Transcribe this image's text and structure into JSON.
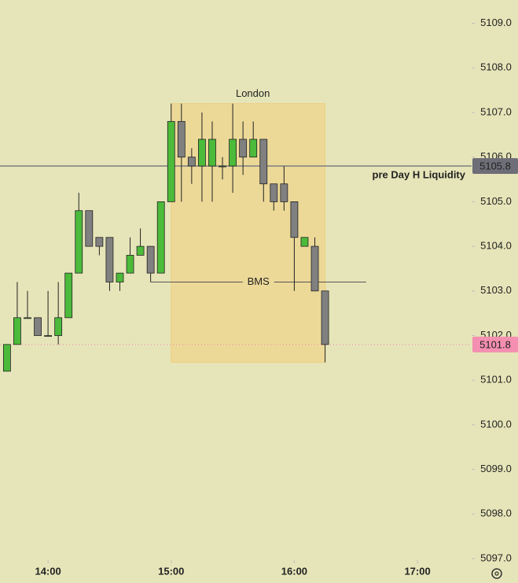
{
  "chart_data": {
    "type": "candlestick",
    "x": [
      820,
      825,
      830,
      835,
      840,
      845,
      850,
      855,
      860,
      865,
      870,
      875,
      880,
      885,
      890,
      895,
      900,
      905,
      910,
      915,
      920,
      925,
      930,
      935,
      940,
      945,
      950,
      955,
      960,
      965,
      970,
      975
    ],
    "series": [
      {
        "up_color": "#4cba3a",
        "down_color": "#808080",
        "open": [
          5101.2,
          5101.8,
          5102.4,
          5102.4,
          5102.0,
          5102.0,
          5102.4,
          5103.4,
          5104.8,
          5104.2,
          5104.2,
          5103.2,
          5103.4,
          5103.8,
          5104.0,
          5103.4,
          5105.0,
          5106.8,
          5106.0,
          5105.8,
          5105.8,
          5105.8,
          5105.8,
          5106.4,
          5106.0,
          5106.4,
          5105.4,
          5105.4,
          5105.0,
          5104.0,
          5104.0,
          5103.0
        ],
        "high": [
          5101.8,
          5103.2,
          5103.0,
          5102.4,
          5103.0,
          5103.2,
          5103.4,
          5105.2,
          5104.8,
          5104.2,
          5104.2,
          5103.4,
          5104.2,
          5104.4,
          5104.0,
          5105.0,
          5107.2,
          5107.2,
          5106.2,
          5107.0,
          5106.8,
          5106.0,
          5107.2,
          5106.8,
          5106.8,
          5106.4,
          5105.4,
          5105.8,
          5105.0,
          5104.2,
          5104.2,
          5103.0
        ],
        "low": [
          5101.2,
          5101.8,
          5102.4,
          5102.0,
          5102.0,
          5101.8,
          5102.4,
          5103.4,
          5104.0,
          5103.8,
          5103.0,
          5103.0,
          5103.4,
          5103.8,
          5103.2,
          5103.4,
          5105.0,
          5105.0,
          5105.4,
          5105.0,
          5105.0,
          5105.5,
          5105.2,
          5105.6,
          5106.0,
          5105.0,
          5104.8,
          5104.8,
          5103.0,
          5104.0,
          5103.0,
          5101.4
        ],
        "close": [
          5101.8,
          5102.4,
          5102.4,
          5102.0,
          5102.0,
          5102.4,
          5103.4,
          5104.8,
          5104.0,
          5104.0,
          5103.2,
          5103.4,
          5103.8,
          5104.0,
          5103.4,
          5105.0,
          5106.8,
          5106.0,
          5105.8,
          5106.4,
          5106.4,
          5105.8,
          5106.4,
          5106.0,
          5106.4,
          5105.4,
          5105.0,
          5105.0,
          5104.2,
          5104.2,
          5103.0,
          5101.8
        ]
      }
    ],
    "xlim": [
      816.6,
      1046.4
    ],
    "ylim": [
      5097,
      5109.5
    ],
    "xticks": [
      {
        "value": 840,
        "label": "14:00"
      },
      {
        "value": 900,
        "label": "15:00"
      },
      {
        "value": 960,
        "label": "16:00"
      },
      {
        "value": 1020,
        "label": "17:00"
      }
    ],
    "yticks": [
      {
        "value": 5097,
        "label": "5097.0"
      },
      {
        "value": 5098,
        "label": "5098.0"
      },
      {
        "value": 5099,
        "label": "5099.0"
      },
      {
        "value": 5100,
        "label": "5100.0"
      },
      {
        "value": 5101,
        "label": "5101.0"
      },
      {
        "value": 5102,
        "label": "5102.0"
      },
      {
        "value": 5103,
        "label": "5103.0"
      },
      {
        "value": 5104,
        "label": "5104.0"
      },
      {
        "value": 5105,
        "label": "5105.0"
      },
      {
        "value": 5106,
        "label": "5106.0"
      },
      {
        "value": 5107,
        "label": "5107.0"
      },
      {
        "value": 5108,
        "label": "5108.0"
      },
      {
        "value": 5109,
        "label": "5109.0"
      }
    ],
    "session_box": {
      "label": "London",
      "x": [
        900,
        975
      ],
      "y": [
        5101.4,
        5107.2
      ],
      "color": "#f0cf7e"
    },
    "liquidity_line": {
      "label": "pre Day H Liquidity",
      "value": 5105.8,
      "color": "#7f7f80"
    },
    "current_price": {
      "value": 5101.8,
      "color": "#f48fb1"
    },
    "bms_line": {
      "label": "BMS",
      "value": 5103.2,
      "x": [
        890,
        995
      ],
      "color": "#555555"
    }
  }
}
